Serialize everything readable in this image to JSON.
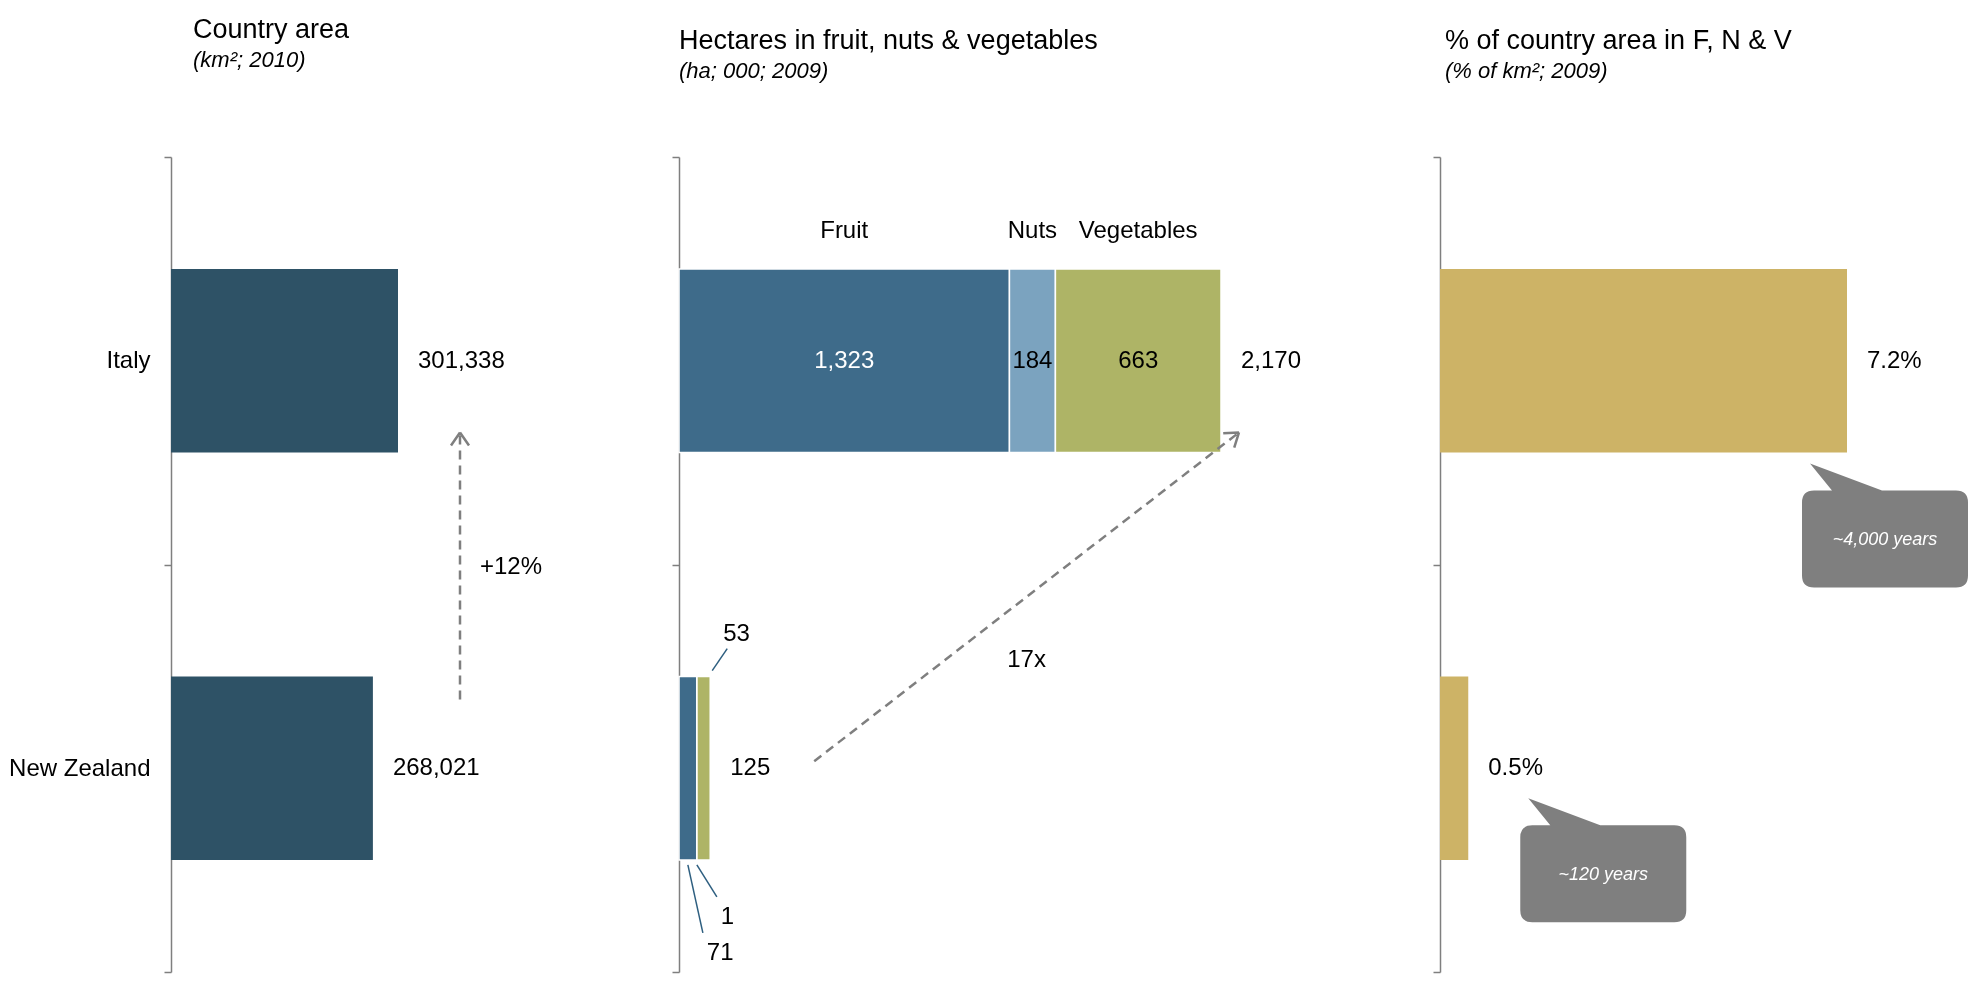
{
  "chart_data": [
    {
      "type": "bar",
      "orientation": "horizontal",
      "title": "Country area",
      "subtitle": "(km²; 2010)",
      "categories": [
        "Italy",
        "New Zealand"
      ],
      "values": [
        301338,
        268021
      ],
      "color": "#2e5266",
      "value_labels": [
        "301,338",
        "268,021"
      ],
      "tick_labels": "y",
      "annotations": [
        "+12%"
      ]
    },
    {
      "type": "bar",
      "orientation": "horizontal",
      "stacked": true,
      "title": "Hectares in fruit, nuts & vegetables",
      "subtitle": "(ha; 000; 2009)",
      "categories": [
        null,
        null
      ],
      "series": [
        {
          "name": "Fruit",
          "color": "#3e6b8a",
          "values": [
            1323,
            71
          ],
          "value_labels": [
            "1,323",
            "71"
          ]
        },
        {
          "name": "Nuts",
          "color": "#7ba3bf",
          "values": [
            184,
            1
          ],
          "value_labels": [
            "184",
            "1"
          ]
        },
        {
          "name": "Vegetables",
          "color": "#aeb466",
          "values": [
            663,
            53
          ],
          "value_labels": [
            "663",
            "53"
          ]
        }
      ],
      "totals": [
        "2,170",
        "125"
      ],
      "tick_labels": false,
      "annotations": [
        "17x"
      ]
    },
    {
      "type": "bar",
      "orientation": "horizontal",
      "title": "% of country area in F, N & V",
      "subtitle": "(% of km²; 2009)",
      "categories": [
        null,
        null
      ],
      "values": [
        7.2,
        0.5
      ],
      "color": "#cdb366",
      "value_labels": [
        "7.2%",
        "0.5%"
      ],
      "tick_labels": false,
      "annotations": [
        "~4,000 years",
        "~120 years"
      ]
    }
  ]
}
